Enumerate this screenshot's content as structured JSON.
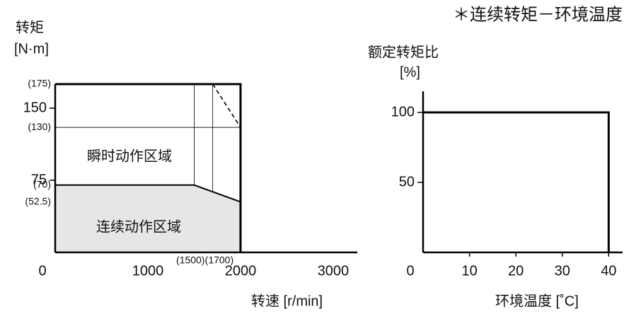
{
  "chart_data": [
    {
      "type": "area",
      "ylabel": [
        "转矩",
        "[N·m]"
      ],
      "xlabel": "转速 [r/min]",
      "xlim": [
        0,
        3260
      ],
      "ylim": [
        0,
        190
      ],
      "xticks": [
        0,
        1000,
        {
          "value": 1500,
          "label": "(1500)"
        },
        {
          "value": 1700,
          "label": "(1700)"
        },
        2000,
        3000
      ],
      "yticks": [
        {
          "value": 52.5,
          "label": "(52.5)"
        },
        {
          "value": 70,
          "label": "(70)"
        },
        75,
        {
          "value": 130,
          "label": "(130)"
        },
        150,
        {
          "value": 175,
          "label": "(175)"
        }
      ],
      "series": [
        {
          "name": "瞬时动作区域",
          "color": "#000000",
          "x": [
            0,
            2000,
            2000
          ],
          "values": [
            175,
            175,
            0
          ]
        },
        {
          "name": "连续动作区域",
          "color": "#e6e6e6",
          "x": [
            0,
            1500,
            2000,
            2000
          ],
          "values": [
            70,
            70,
            52.5,
            0
          ]
        },
        {
          "color": "#000000",
          "line_style": "dashed",
          "x": [
            1700,
            2000
          ],
          "values": [
            175,
            130
          ]
        }
      ]
    },
    {
      "type": "line",
      "title": "＊连续转矩－环境温度",
      "ylabel": [
        "额定转矩比",
        "[%]"
      ],
      "xlabel": "环境温度 [˚C]",
      "xlim": [
        0,
        43
      ],
      "ylim": [
        0,
        115
      ],
      "xticks": [
        0,
        10,
        20,
        30,
        40
      ],
      "yticks": [
        50,
        100
      ],
      "series": [
        {
          "color": "#000000",
          "x": [
            0,
            40,
            40
          ],
          "values": [
            100,
            100,
            0
          ]
        }
      ]
    }
  ]
}
